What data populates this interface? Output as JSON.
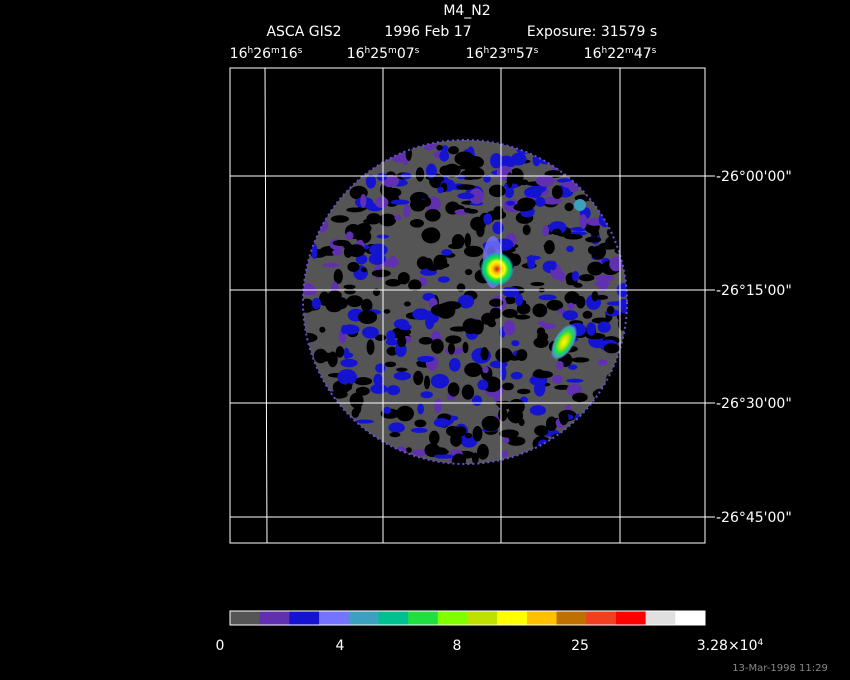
{
  "header": {
    "title": "M4_N2",
    "instrument": "ASCA GIS2",
    "date": "1996 Feb 17",
    "exposure": "Exposure: 31579 s"
  },
  "ra_labels": [
    [
      "16",
      "h",
      "26",
      "m",
      "16",
      "s"
    ],
    [
      "16",
      "h",
      "25",
      "m",
      "07",
      "s"
    ],
    [
      "16",
      "h",
      "23",
      "m",
      "57",
      "s"
    ],
    [
      "16",
      "h",
      "22",
      "m",
      "47",
      "s"
    ]
  ],
  "dec_labels": [
    "-26°00'00\"",
    "-26°15'00\"",
    "-26°30'00\"",
    "-26°45'00\""
  ],
  "colorbar": {
    "colors": [
      "#555555",
      "#6030b0",
      "#1414d0",
      "#7474ff",
      "#3ca0c0",
      "#00c090",
      "#20e040",
      "#80ff00",
      "#c0e000",
      "#ffff00",
      "#ffc000",
      "#c07000",
      "#f04020",
      "#ff0000",
      "#e0e0e0",
      "#ffffff"
    ],
    "labels": [
      [
        "0"
      ],
      [
        "4"
      ],
      [
        "8"
      ],
      [
        "25"
      ],
      [
        "3.28×10",
        "4"
      ]
    ]
  },
  "timestamp": "13-Mar-1998 11:29"
}
